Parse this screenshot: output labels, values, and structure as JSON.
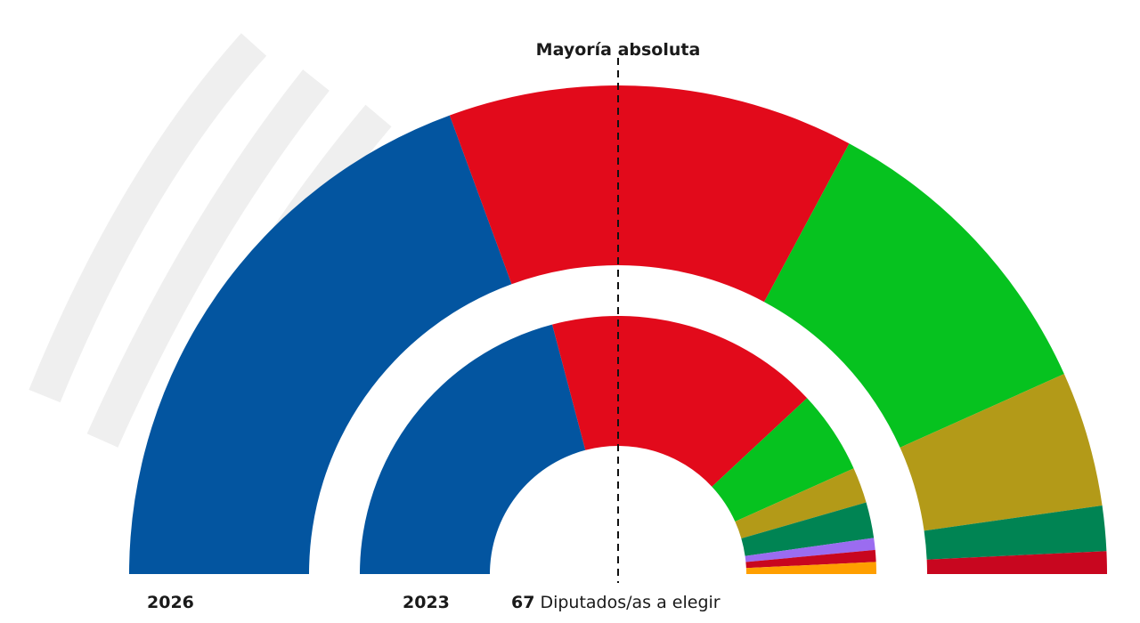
{
  "chart_data": {
    "type": "hemicycle",
    "annotation": "Mayoría absoluta",
    "total": 67,
    "total_label": "Diputados/as a elegir",
    "rings": [
      {
        "label": "2026",
        "values": [
          26,
          18,
          14,
          6,
          2,
          1
        ],
        "colors": [
          "#0355a0",
          "#e20a1b",
          "#06c21f",
          "#b39a18",
          "#008453",
          "#c8061f"
        ]
      },
      {
        "label": "2023",
        "values": [
          28,
          23,
          7,
          3,
          3,
          1,
          1,
          1
        ],
        "colors": [
          "#0355a0",
          "#e20a1b",
          "#06c21f",
          "#b39a18",
          "#008453",
          "#9b6cf0",
          "#c8061f",
          "#ff9f00"
        ]
      }
    ]
  }
}
